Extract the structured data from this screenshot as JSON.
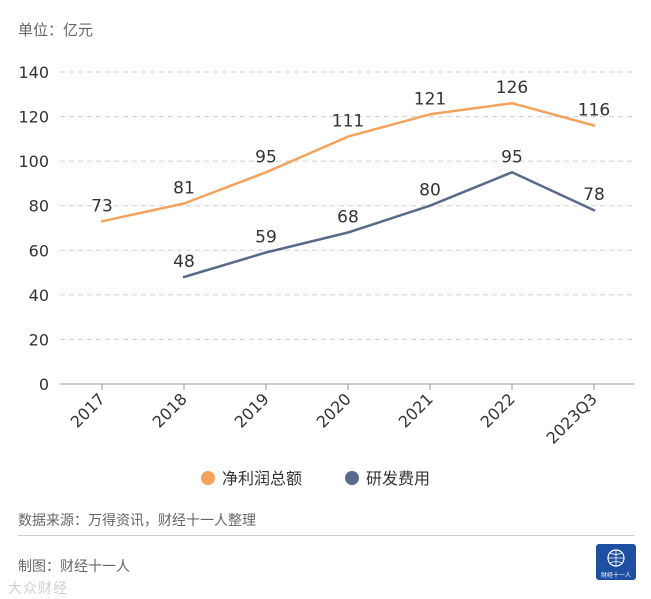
{
  "header": {
    "unit_label": "单位：亿元"
  },
  "chart_data": {
    "type": "line",
    "categories": [
      "2017",
      "2018",
      "2019",
      "2020",
      "2021",
      "2022",
      "2023Q3"
    ],
    "series": [
      {
        "name": "净利润总额",
        "color": "#f3a35c",
        "values": [
          73,
          81,
          95,
          111,
          121,
          126,
          116
        ]
      },
      {
        "name": "研发费用",
        "color": "#5a6a8a",
        "values": [
          null,
          48,
          59,
          68,
          80,
          95,
          78
        ]
      }
    ],
    "y_ticks": [
      0,
      20,
      40,
      60,
      80,
      100,
      120,
      140
    ],
    "ylim": [
      0,
      140
    ],
    "grid": true,
    "legend_position": "bottom"
  },
  "footer": {
    "source": "数据来源：万得资讯，财经十一人整理",
    "credit": "制图：财经十一人",
    "logo_text": "财经十一人",
    "watermark": "大众财经"
  }
}
